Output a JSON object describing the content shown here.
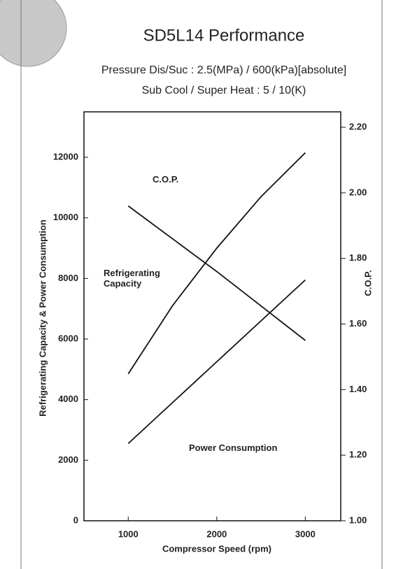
{
  "chart_data": {
    "type": "line",
    "title": "SD5L14 Performance",
    "subtitle": [
      "Pressure Dis/Suc : 2.5(MPa) / 600(kPa)[absolute]",
      "Sub Cool / Super Heat : 5 / 10(K)"
    ],
    "x_label": "Compressor Speed (rpm)",
    "y_label": "Refrigerating Capacity & Power Consumption",
    "y2_label": "C.O.P.",
    "x": [
      1000,
      1500,
      2000,
      2500,
      3000
    ],
    "series": [
      {
        "name": "Refrigerating Capacity",
        "color": "#111111",
        "values": [
          4850,
          7100,
          9000,
          10700,
          12150
        ]
      },
      {
        "name": "Power Consumption",
        "color": "#111111",
        "values": [
          2550,
          3900,
          5250,
          6600,
          7950
        ]
      },
      {
        "name": "C.O.P.",
        "color": "#111111",
        "axis": "y2",
        "values": [
          1.96,
          1.86,
          1.76,
          1.655,
          1.55
        ]
      }
    ],
    "xlim": [
      500,
      3400
    ],
    "xticks": [
      1000,
      2000,
      3000
    ],
    "ylim": [
      0,
      13500
    ],
    "yticks": [
      0,
      2000,
      4000,
      6000,
      8000,
      10000,
      12000
    ],
    "y2lim": [
      1.0,
      2.247
    ],
    "y2ticks": [
      {
        "value": 1.0,
        "label": "1.00"
      },
      {
        "value": 1.2,
        "label": "1.20"
      },
      {
        "value": 1.4,
        "label": "1.40"
      },
      {
        "value": 1.6,
        "label": "1.60"
      },
      {
        "value": 1.8,
        "label": "1.80"
      },
      {
        "value": 2.0,
        "label": "2.00"
      },
      {
        "value": 2.2,
        "label": "2.20"
      }
    ]
  }
}
